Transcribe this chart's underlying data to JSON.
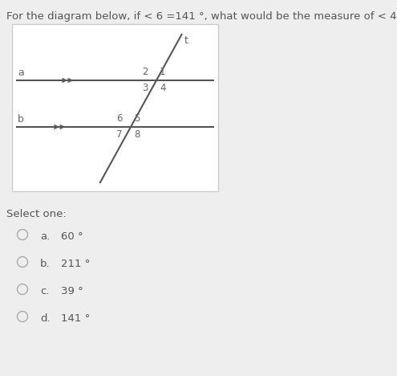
{
  "title": "For the diagram below, if < 6 =141 °, what would be the measure of < 4 ?",
  "title_fontsize": 9.5,
  "bg_color": "#eeeeee",
  "diagram_bg": "#ffffff",
  "line_color": "#555555",
  "label_color": "#666666",
  "text_color": "#555555",
  "select_one_text": "Select one:",
  "options": [
    {
      "letter": "a.",
      "text": "60 °"
    },
    {
      "letter": "b.",
      "text": "211 °"
    },
    {
      "letter": "c.",
      "text": "39 °"
    },
    {
      "letter": "d.",
      "text": "141 °"
    }
  ]
}
